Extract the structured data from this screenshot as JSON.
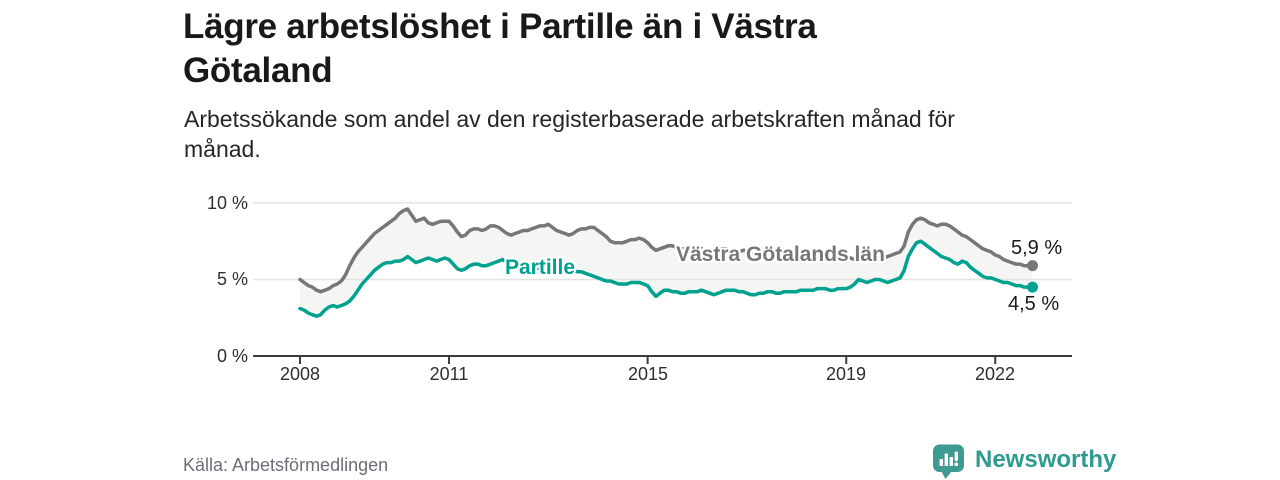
{
  "title_line1": "Lägre arbetslöshet i Partille än i Västra",
  "title_line2": "Götaland",
  "subtitle_line1": "Arbetssökande som andel av den registerbaserade arbetskraften månad för",
  "subtitle_line2": "månad.",
  "source": "Källa: Arbetsförmedlingen",
  "branding": {
    "name": "Newsworthy",
    "icon": "newsworthy-chart-bubble-icon",
    "color": "#2E9A90"
  },
  "colors": {
    "partille": "#00A18E",
    "vastra_gotaland": "#76767B",
    "area_fill": "#F5F5F4",
    "grid": "#E3E3E3",
    "axis": "#3C3C40",
    "text_dark": "#1A1A1A",
    "text_gray": "#6D6D76"
  },
  "chart_data": {
    "type": "line",
    "unit": "%",
    "x_start": "2008-01",
    "x_end": "2022-10",
    "x_ticks": [
      2008,
      2011,
      2015,
      2019,
      2022
    ],
    "x_tick_labels": [
      "2008",
      "2011",
      "2015",
      "2019",
      "2022"
    ],
    "y_tick_labels": [
      "0 %",
      "5 %",
      "10 %"
    ],
    "y_ticks": [
      0,
      5,
      10
    ],
    "ylim": [
      0,
      10.8
    ],
    "grid": "horizontal-only",
    "legend_position": "inline-labels-on-lines",
    "series": [
      {
        "name": "Västra Götalands län",
        "color": "#76767B",
        "end_label": "5,9 %",
        "end_value": 5.9,
        "values": [
          5.0,
          4.8,
          4.6,
          4.5,
          4.3,
          4.2,
          4.3,
          4.4,
          4.6,
          4.7,
          4.9,
          5.3,
          5.9,
          6.4,
          6.8,
          7.1,
          7.4,
          7.7,
          8.0,
          8.2,
          8.4,
          8.6,
          8.8,
          9.0,
          9.3,
          9.5,
          9.6,
          9.2,
          8.8,
          8.9,
          9.0,
          8.7,
          8.6,
          8.7,
          8.8,
          8.8,
          8.8,
          8.5,
          8.1,
          7.8,
          7.9,
          8.2,
          8.3,
          8.3,
          8.2,
          8.3,
          8.5,
          8.5,
          8.4,
          8.2,
          8.0,
          7.9,
          8.0,
          8.1,
          8.2,
          8.2,
          8.3,
          8.4,
          8.5,
          8.5,
          8.6,
          8.4,
          8.2,
          8.1,
          8.0,
          7.9,
          8.0,
          8.2,
          8.3,
          8.3,
          8.4,
          8.4,
          8.2,
          8.0,
          7.8,
          7.5,
          7.4,
          7.4,
          7.4,
          7.5,
          7.6,
          7.6,
          7.7,
          7.6,
          7.4,
          7.1,
          6.9,
          7.0,
          7.1,
          7.2,
          7.2,
          7.1,
          7.0,
          7.0,
          7.1,
          7.1,
          7.1,
          7.0,
          6.9,
          6.8,
          6.8,
          6.9,
          7.0,
          7.0,
          6.9,
          6.8,
          6.8,
          6.9,
          6.9,
          6.8,
          6.7,
          6.6,
          6.6,
          6.7,
          6.8,
          6.7,
          6.6,
          6.6,
          6.6,
          6.7,
          6.7,
          6.6,
          6.5,
          6.4,
          6.4,
          6.5,
          6.5,
          6.5,
          6.4,
          6.3,
          6.4,
          6.4,
          6.5,
          6.4,
          6.3,
          6.3,
          6.3,
          6.4,
          6.5,
          6.5,
          6.4,
          6.4,
          6.5,
          6.6,
          6.7,
          6.8,
          7.2,
          8.1,
          8.6,
          8.9,
          9.0,
          8.9,
          8.7,
          8.6,
          8.5,
          8.6,
          8.6,
          8.5,
          8.3,
          8.1,
          7.9,
          7.8,
          7.6,
          7.4,
          7.2,
          7.0,
          6.9,
          6.8,
          6.6,
          6.5,
          6.3,
          6.2,
          6.1,
          6.0,
          6.0,
          5.9,
          5.9,
          5.9
        ]
      },
      {
        "name": "Partille",
        "color": "#00A18E",
        "end_label": "4,5 %",
        "end_value": 4.5,
        "values": [
          3.1,
          3.0,
          2.8,
          2.7,
          2.6,
          2.7,
          3.0,
          3.2,
          3.3,
          3.2,
          3.3,
          3.4,
          3.6,
          3.9,
          4.3,
          4.7,
          5.0,
          5.3,
          5.6,
          5.8,
          6.0,
          6.1,
          6.1,
          6.2,
          6.2,
          6.3,
          6.5,
          6.3,
          6.1,
          6.2,
          6.3,
          6.4,
          6.3,
          6.2,
          6.3,
          6.4,
          6.3,
          6.0,
          5.7,
          5.6,
          5.7,
          5.9,
          6.0,
          6.0,
          5.9,
          5.9,
          6.0,
          6.1,
          6.2,
          6.3,
          6.1,
          5.9,
          5.8,
          5.8,
          5.9,
          5.9,
          5.8,
          5.8,
          5.7,
          5.7,
          5.7,
          5.6,
          5.6,
          5.5,
          5.5,
          5.6,
          5.6,
          5.5,
          5.5,
          5.4,
          5.3,
          5.2,
          5.1,
          5.0,
          4.9,
          4.9,
          4.8,
          4.7,
          4.7,
          4.7,
          4.8,
          4.8,
          4.8,
          4.7,
          4.6,
          4.2,
          3.9,
          4.1,
          4.3,
          4.3,
          4.2,
          4.2,
          4.1,
          4.1,
          4.2,
          4.2,
          4.2,
          4.3,
          4.2,
          4.1,
          4.0,
          4.1,
          4.2,
          4.3,
          4.3,
          4.3,
          4.2,
          4.2,
          4.1,
          4.0,
          4.0,
          4.1,
          4.1,
          4.2,
          4.2,
          4.1,
          4.1,
          4.2,
          4.2,
          4.2,
          4.2,
          4.3,
          4.3,
          4.3,
          4.3,
          4.4,
          4.4,
          4.4,
          4.3,
          4.3,
          4.4,
          4.4,
          4.4,
          4.5,
          4.7,
          5.0,
          4.9,
          4.8,
          4.9,
          5.0,
          5.0,
          4.9,
          4.8,
          4.9,
          5.0,
          5.1,
          5.6,
          6.5,
          7.0,
          7.4,
          7.5,
          7.3,
          7.1,
          6.9,
          6.7,
          6.5,
          6.4,
          6.3,
          6.1,
          6.0,
          6.2,
          6.1,
          5.8,
          5.6,
          5.4,
          5.2,
          5.1,
          5.1,
          5.0,
          4.9,
          4.8,
          4.8,
          4.7,
          4.6,
          4.6,
          4.5,
          4.5,
          4.5
        ]
      }
    ]
  }
}
